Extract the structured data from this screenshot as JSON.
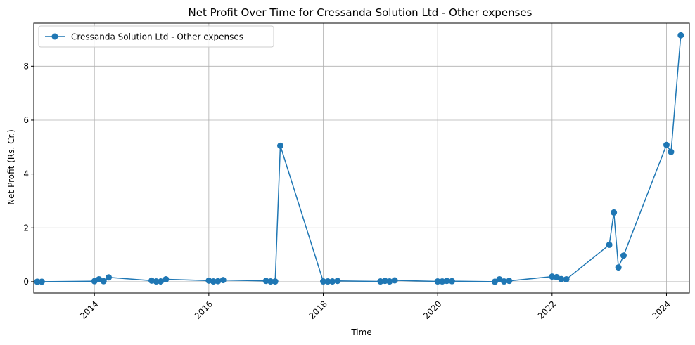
{
  "chart_data": {
    "type": "line",
    "title": "Net Profit Over Time for Cressanda Solution Ltd - Other expenses",
    "xlabel": "Time",
    "ylabel": "Net Profit (Rs. Cr.)",
    "xlim": [
      2012.94,
      2024.4
    ],
    "ylim": [
      -0.42,
      9.6
    ],
    "x_ticks": [
      2014,
      2016,
      2018,
      2020,
      2022,
      2024
    ],
    "y_ticks": [
      0,
      2,
      4,
      6,
      8
    ],
    "grid": true,
    "legend_position": "top-left",
    "colors": {
      "series": "#1f77b4"
    },
    "series": [
      {
        "name": "Cressanda Solution Ltd - Other expenses",
        "x": [
          2013.0,
          2013.08,
          2014.0,
          2014.08,
          2014.16,
          2014.25,
          2015.0,
          2015.08,
          2015.16,
          2015.25,
          2016.0,
          2016.08,
          2016.16,
          2016.25,
          2017.0,
          2017.08,
          2017.16,
          2017.25,
          2018.0,
          2018.08,
          2018.16,
          2018.25,
          2019.0,
          2019.08,
          2019.16,
          2019.25,
          2020.0,
          2020.08,
          2020.16,
          2020.25,
          2021.0,
          2021.08,
          2021.16,
          2021.25,
          2022.0,
          2022.08,
          2022.16,
          2022.25,
          2023.0,
          2023.08,
          2023.16,
          2023.25,
          2024.0,
          2024.08,
          2024.25
        ],
        "y": [
          0.0,
          0.0,
          0.02,
          0.09,
          0.02,
          0.16,
          0.04,
          0.01,
          0.01,
          0.09,
          0.04,
          0.01,
          0.02,
          0.06,
          0.03,
          0.01,
          0.01,
          5.05,
          0.01,
          0.01,
          0.01,
          0.03,
          0.01,
          0.03,
          0.01,
          0.05,
          0.01,
          0.01,
          0.03,
          0.02,
          0.0,
          0.09,
          0.01,
          0.03,
          0.19,
          0.17,
          0.1,
          0.09,
          1.37,
          2.57,
          0.53,
          0.97,
          5.08,
          4.82,
          9.15
        ]
      }
    ]
  }
}
